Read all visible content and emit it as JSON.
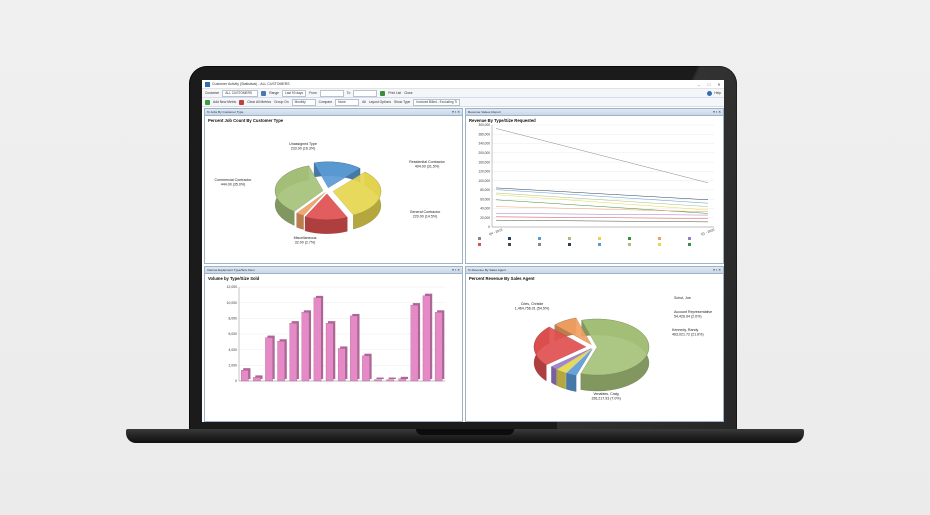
{
  "app": {
    "title": "Customer Activity (Statistical) - ALL CUSTOMERS",
    "toolbar1": {
      "customer_label": "Customer",
      "customer_value": "ALL CUSTOMERS",
      "range_label": "Range",
      "range_value": "Last 90 days",
      "from_label": "From",
      "to_label": "To",
      "print_label": "Print List",
      "close_label": "Close",
      "help_label": "Help"
    },
    "toolbar2": {
      "add_metric_label": "Add New Metric",
      "clear_label": "Clear All Metrics",
      "group_label": "Group On",
      "group_value": "Monthly",
      "compare_label": "Compare",
      "compare_value": "None",
      "all_label": "All",
      "layout_label": "Layout Options",
      "show_type_label": "Show Type",
      "show_type_value": "Invoiced Billed - Excluding Ti"
    }
  },
  "panels": {
    "top_left": {
      "header": "% Jobs By Customer Type",
      "title": "Percent Job Count By Customer Type"
    },
    "top_right": {
      "header": "Revenue Values Report",
      "title": "Revenue By Type/Size Requested"
    },
    "bottom_left": {
      "header": "Volume Equipment Type/Size Dem",
      "title": "Volume by Type/Size Sold"
    },
    "bottom_right": {
      "header": "% Revenue By Sales Agent",
      "title": "Percent Revenue By Sales Agent"
    }
  },
  "colors": {
    "green": "#a6c27a",
    "yellow": "#e6d64f",
    "red": "#e05050",
    "orange": "#f0a062",
    "blue": "#5b9bd5",
    "pink": "#e58ac6"
  },
  "chart_data": [
    {
      "type": "pie",
      "title": "Percent Job Count By Customer Type",
      "slices": [
        {
          "label": "Unassigned Type",
          "value_label": "233.00 (16.3%)",
          "value": 16.3,
          "color": "#5b9bd5"
        },
        {
          "label": "Residential Contractor",
          "value_label": "404.00 (31.5%)",
          "value": 31.5,
          "color": "#e6d64f"
        },
        {
          "label": "General Contractor",
          "value_label": "220.00 (14.5%)",
          "value": 14.5,
          "color": "#e05050"
        },
        {
          "label": "Miscellaneous",
          "value_label": "32.00 (2.7%)",
          "value": 2.7,
          "color": "#f0a062"
        },
        {
          "label": "Commercial Contractor",
          "value_label": "444.00 (35.0%)",
          "value": 35.0,
          "color": "#a6c27a"
        }
      ]
    },
    {
      "type": "line",
      "title": "Revenue By Type/Size Requested",
      "yticks": [
        "300,000",
        "280,000",
        "240,000",
        "200,000",
        "160,000",
        "120,000",
        "100,000",
        "80,000",
        "60,000",
        "40,000",
        "20,000",
        "0"
      ],
      "ylim": [
        0,
        300000
      ],
      "x": [
        "Q4 - 2019",
        "Q1 - 2020"
      ],
      "series": [
        {
          "values": [
            290000,
            130000
          ]
        },
        {
          "values": [
            115000,
            80000
          ]
        },
        {
          "values": [
            110000,
            70000
          ]
        },
        {
          "values": [
            100000,
            60000
          ]
        },
        {
          "values": [
            95000,
            50000
          ]
        },
        {
          "values": [
            80000,
            40000
          ]
        },
        {
          "values": [
            60000,
            45000
          ]
        },
        {
          "values": [
            40000,
            35000
          ]
        },
        {
          "values": [
            30000,
            25000
          ]
        },
        {
          "values": [
            20000,
            15000
          ]
        }
      ]
    },
    {
      "type": "bar",
      "title": "Volume by Type/Size Sold",
      "yticks": [
        "12,000",
        "10,000",
        "8,000",
        "6,000",
        "4,000",
        "2,000",
        "0"
      ],
      "ylim": [
        0,
        13000
      ],
      "values": [
        1500,
        500,
        6000,
        5500,
        8000,
        9500,
        11500,
        8000,
        4500,
        9000,
        3500,
        200,
        200,
        300,
        10500,
        11800,
        9500
      ],
      "color": "#e58ac6"
    },
    {
      "type": "pie",
      "title": "Percent Revenue By Sales Agent",
      "slices": [
        {
          "label": "Cries, Christie",
          "value_label": "1,464,756.01 (54.5%)",
          "value": 54.5,
          "color": "#a6c27a"
        },
        {
          "label": "Schut, Joe",
          "value_label": "",
          "value": 3.0,
          "color": "#5b9bd5"
        },
        {
          "label": "",
          "value_label": "",
          "value": 3.0,
          "color": "#e6d64f"
        },
        {
          "label": "Account Representative",
          "value_label": "54,426.94 (2.0%)",
          "value": 2.0,
          "color": "#9a7bc9"
        },
        {
          "label": "Kennedy, Randy",
          "value_label": "463,021.72 (21.6%)",
          "value": 21.6,
          "color": "#e05050"
        },
        {
          "label": "Venables, Craig",
          "value_label": "156,217.93 (7.0%)",
          "value": 7.0,
          "color": "#f0a062"
        }
      ]
    }
  ]
}
